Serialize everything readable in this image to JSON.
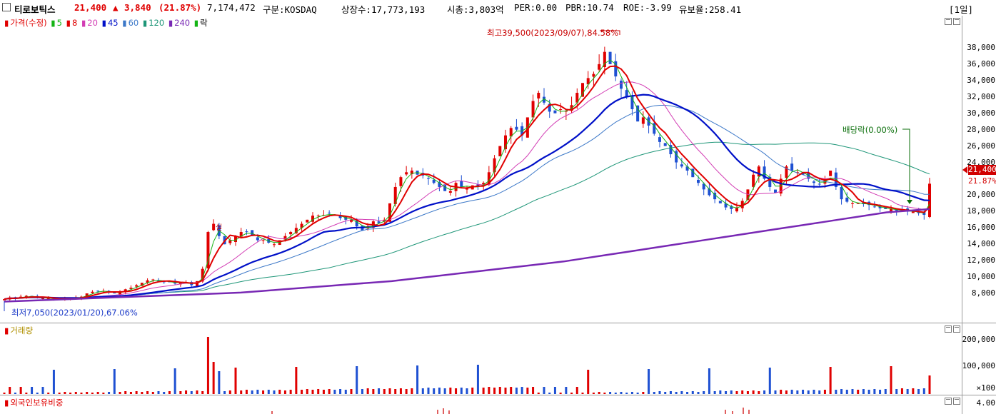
{
  "header": {
    "name": "티로보틱스",
    "price": "21,400",
    "change_arrow": "▲",
    "change": "3,840",
    "change_pct": "(21.87%)",
    "volume": "7,174,472",
    "market": "구분:KOSDAQ",
    "shares": "상장수:17,773,193",
    "mktcap": "시총:3,803억",
    "per": "PER:0.00",
    "pbr": "PBR:10.74",
    "roe": "ROE:-3.99",
    "float": "유보율:258.41",
    "period": "[1일]"
  },
  "legend": {
    "price": "가격(수정)",
    "ma5": "5",
    "ma8": "8",
    "ma20": "20",
    "ma45": "45",
    "ma60": "60",
    "ma120": "120",
    "ma240": "240",
    "drop": "락"
  },
  "annotations": {
    "high": "최고39,500(2023/09/07),84.58%",
    "low": "최저7,050(2023/01/20),67.06%",
    "dividend": "배당락(0.00%)",
    "marker": "실"
  },
  "price_axis": {
    "ticks": [
      "38,000",
      "36,000",
      "34,000",
      "32,000",
      "30,000",
      "28,000",
      "26,000",
      "24,000",
      "22,000",
      "20,000",
      "18,000",
      "16,000",
      "14,000",
      "12,000",
      "10,000",
      "8,000"
    ],
    "current_price": "21,400",
    "current_pct": "21.87%"
  },
  "volume_panel": {
    "title": "거래량",
    "ticks": [
      "200,000",
      "100,000",
      "×100"
    ]
  },
  "foreign_panel": {
    "title": "외국인보유비중",
    "ticks": [
      "4.00"
    ]
  },
  "colors": {
    "up": "#e00000",
    "down": "#1e50d2",
    "ma5": "#14b414",
    "ma8": "#e00000",
    "ma20": "#d23cb4",
    "ma45": "#0010c8",
    "ma60": "#3c78c8",
    "ma120": "#1e9678",
    "ma240": "#7828b4"
  },
  "chart_data": {
    "type": "candlestick",
    "ylim": [
      6000,
      40000
    ],
    "closes": [
      7300,
      7500,
      7400,
      7600,
      7700,
      7600,
      7500,
      7400,
      7400,
      7300,
      7300,
      7400,
      7400,
      7500,
      7600,
      8000,
      8200,
      8300,
      8300,
      8100,
      8000,
      8200,
      8500,
      8700,
      9000,
      9300,
      9600,
      9700,
      9500,
      9400,
      9400,
      9200,
      9300,
      9300,
      9000,
      9500,
      11000,
      15500,
      16500,
      15000,
      14000,
      14500,
      15000,
      15500,
      15500,
      15000,
      14500,
      14500,
      14200,
      14000,
      14500,
      15000,
      15500,
      16000,
      16500,
      17000,
      17500,
      17500,
      17600,
      17800,
      17500,
      17200,
      17000,
      17000,
      16200,
      15700,
      16200,
      16800,
      16600,
      17000,
      19000,
      21000,
      22200,
      22800,
      23000,
      22500,
      22400,
      22000,
      21500,
      21000,
      20500,
      20500,
      21500,
      21000,
      20800,
      21200,
      21000,
      21500,
      22800,
      24500,
      26000,
      27300,
      28200,
      28000,
      27300,
      29500,
      31500,
      32500,
      31300,
      30200,
      30000,
      30500,
      30300,
      31000,
      32500,
      33700,
      34300,
      34800,
      36000,
      37500,
      36000,
      34500,
      33000,
      32000,
      30500,
      29000,
      29500,
      28500,
      27500,
      26500,
      26000,
      25000,
      24000,
      23500,
      23000,
      22200,
      21500,
      20700,
      20000,
      19500,
      19000,
      18500,
      18300,
      18500,
      19300,
      20700,
      22500,
      23500,
      22000,
      21000,
      20300,
      22000,
      23500,
      23000,
      22800,
      22500,
      22000,
      21500,
      21300,
      22000,
      23000,
      21000,
      19500,
      19200,
      19000,
      19000,
      18900,
      18800,
      18600,
      18400,
      18300,
      18300,
      18100,
      18100,
      18000,
      18000,
      17800,
      17600,
      21400
    ],
    "ma240": [
      7000,
      7100,
      7200,
      7300,
      7400,
      7500,
      7600,
      7700,
      7800,
      7900,
      8000,
      8100,
      8300,
      8500,
      8700,
      8900,
      9100,
      9300,
      9500,
      9800,
      10100,
      10400,
      10700,
      11000,
      11300,
      11600,
      11900,
      12300,
      12700,
      13100,
      13500,
      13900,
      14300,
      14700,
      15100,
      15500,
      15900,
      16300,
      16700,
      17100,
      17500,
      17900,
      18100,
      18300
    ]
  }
}
